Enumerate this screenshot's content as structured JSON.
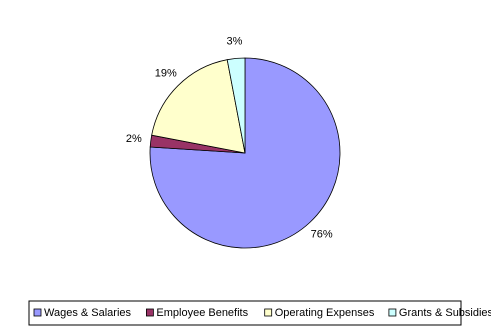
{
  "chart_data": {
    "type": "pie",
    "categories": [
      "Wages & Salaries",
      "Employee Benefits",
      "Operating Expenses",
      "Grants & Subsidies"
    ],
    "values": [
      76,
      2,
      19,
      3
    ],
    "value_labels": [
      "76%",
      "2%",
      "19%",
      "3%"
    ],
    "colors": [
      "#9999ff",
      "#993366",
      "#ffffcc",
      "#ccffff"
    ],
    "legend": "bottom"
  }
}
